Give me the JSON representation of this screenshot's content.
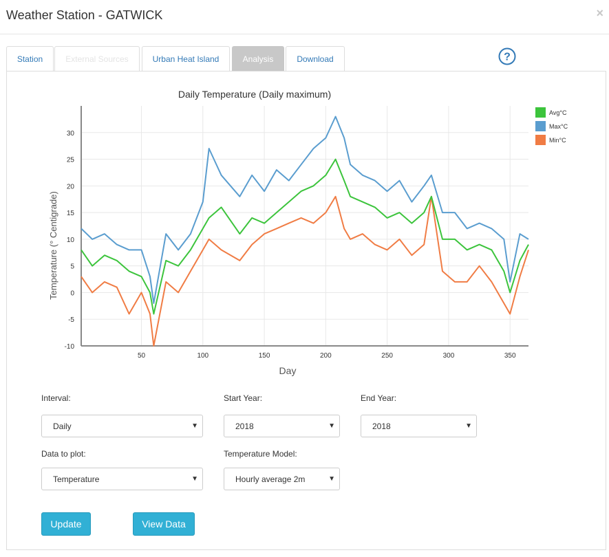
{
  "modal": {
    "title": "Weather Station - GATWICK",
    "close": "×"
  },
  "tabs": [
    {
      "label": "Station",
      "state": "normal"
    },
    {
      "label": "External Sources",
      "state": "disabled"
    },
    {
      "label": "Urban Heat Island",
      "state": "normal"
    },
    {
      "label": "Analysis",
      "state": "active"
    },
    {
      "label": "Download",
      "state": "normal"
    }
  ],
  "help": {
    "glyph": "?"
  },
  "form": {
    "interval": {
      "label": "Interval:",
      "value": "Daily"
    },
    "start_year": {
      "label": "Start Year:",
      "value": "2018"
    },
    "end_year": {
      "label": "End Year:",
      "value": "2018"
    },
    "data_to_plot": {
      "label": "Data to plot:",
      "value": "Temperature"
    },
    "temp_model": {
      "label": "Temperature Model:",
      "value": "Hourly average 2m"
    }
  },
  "buttons": {
    "update": "Update",
    "view_data": "View Data"
  },
  "colors": {
    "avg": "#3cc43c",
    "max": "#5a9dcf",
    "min": "#f07c44",
    "link": "#337ab7"
  },
  "chart_data": {
    "type": "line",
    "title": "Daily Temperature (Daily maximum)",
    "xlabel": "Day",
    "ylabel": "Temperature (° Centigrade)",
    "xlim": [
      1,
      365
    ],
    "ylim": [
      -10,
      35
    ],
    "xticks": [
      50,
      100,
      150,
      200,
      250,
      300,
      350
    ],
    "yticks": [
      -10,
      -5,
      0,
      5,
      10,
      15,
      20,
      25,
      30
    ],
    "grid": true,
    "legend_position": "top-right",
    "x_sample": [
      1,
      10,
      20,
      30,
      40,
      50,
      57,
      60,
      70,
      80,
      90,
      100,
      105,
      115,
      130,
      140,
      150,
      160,
      170,
      180,
      190,
      200,
      208,
      215,
      220,
      230,
      240,
      250,
      260,
      270,
      280,
      286,
      295,
      305,
      315,
      325,
      335,
      345,
      350,
      358,
      365
    ],
    "series": [
      {
        "name": "Avg°C",
        "values": [
          8,
          5,
          7,
          6,
          4,
          3,
          0,
          -4,
          6,
          5,
          8,
          12,
          14,
          16,
          11,
          14,
          13,
          15,
          17,
          19,
          20,
          22,
          25,
          21,
          18,
          17,
          16,
          14,
          15,
          13,
          15,
          18,
          10,
          10,
          8,
          9,
          8,
          4,
          0,
          6,
          9
        ]
      },
      {
        "name": "Max°C",
        "values": [
          12,
          10,
          11,
          9,
          8,
          8,
          3,
          -2,
          11,
          8,
          11,
          17,
          27,
          22,
          18,
          22,
          19,
          23,
          21,
          24,
          27,
          29,
          33,
          29,
          24,
          22,
          21,
          19,
          21,
          17,
          20,
          22,
          15,
          15,
          12,
          13,
          12,
          10,
          2,
          11,
          10
        ]
      },
      {
        "name": "Min°C",
        "values": [
          3,
          0,
          2,
          1,
          -4,
          0,
          -4,
          -10,
          2,
          0,
          4,
          8,
          10,
          8,
          6,
          9,
          11,
          12,
          13,
          14,
          13,
          15,
          18,
          12,
          10,
          11,
          9,
          8,
          10,
          7,
          9,
          18,
          4,
          2,
          2,
          5,
          2,
          -2,
          -4,
          3,
          8
        ]
      }
    ]
  }
}
